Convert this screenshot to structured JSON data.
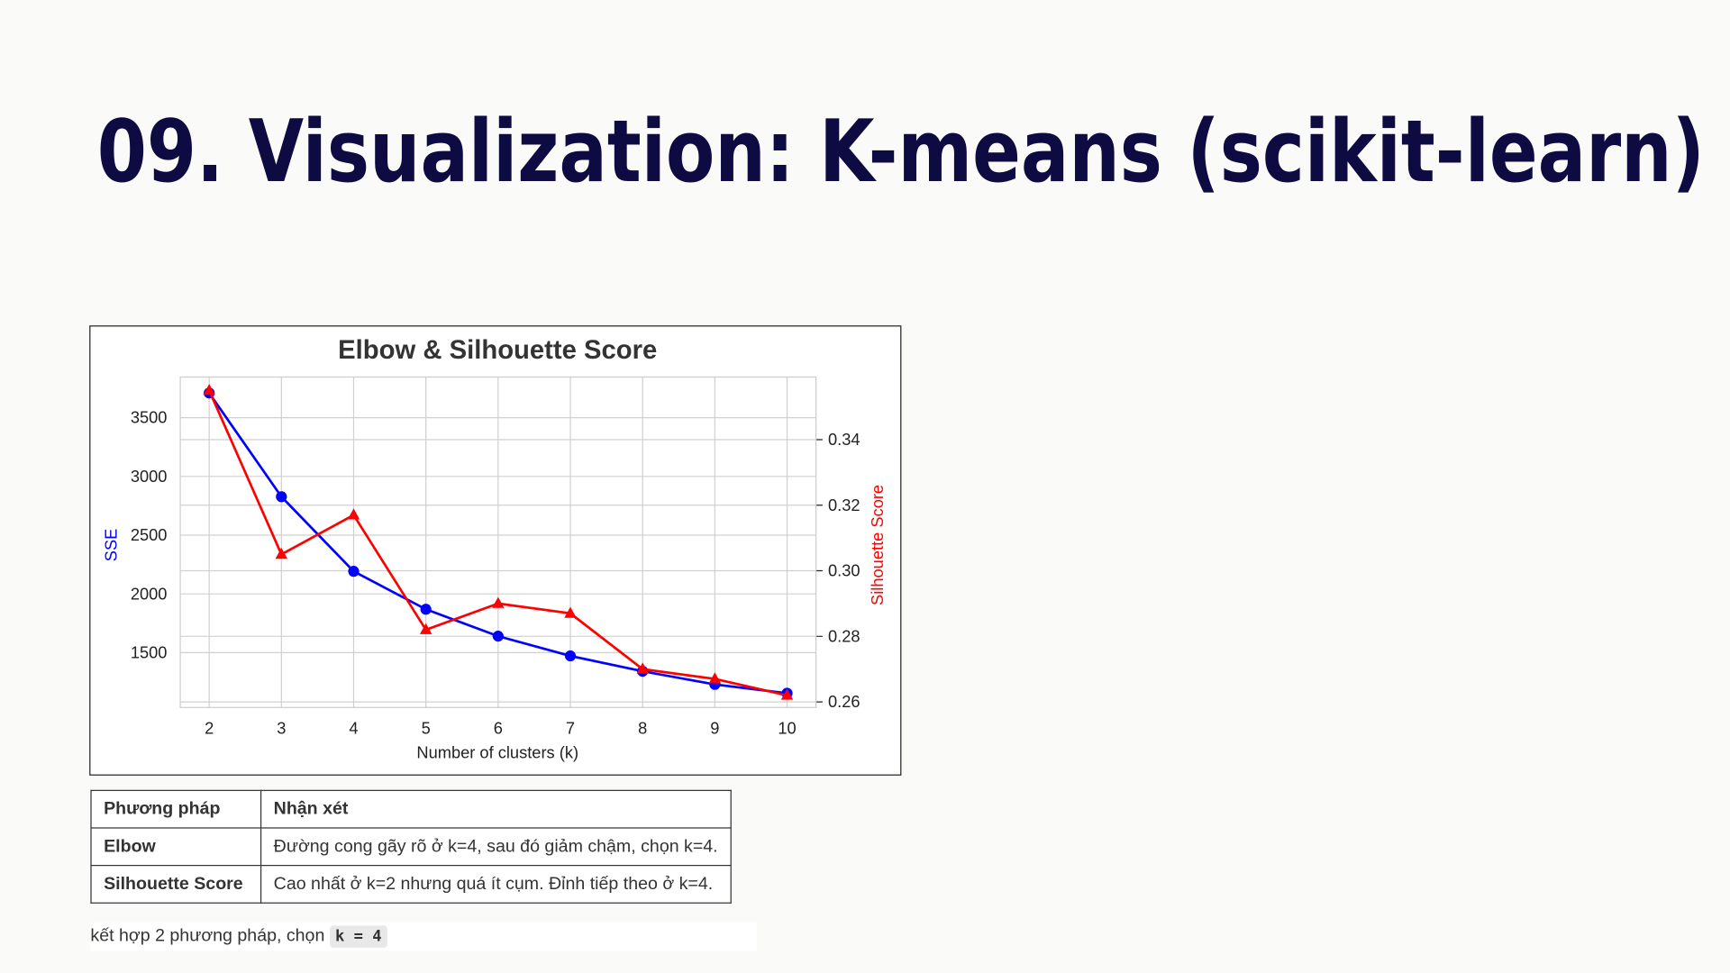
{
  "title": "09. Visualization: K-means (scikit-learn)",
  "chart_data": {
    "type": "line",
    "title": "Elbow & Silhouette Score",
    "x_label": "Number of clusters (k)",
    "y_label": "SSE",
    "y2_label": "Silhouette Score",
    "x": [
      2,
      3,
      4,
      5,
      6,
      7,
      8,
      9,
      10
    ],
    "xlim": [
      1.6,
      10.4
    ],
    "xticks": [
      2,
      3,
      4,
      5,
      6,
      7,
      8,
      9,
      10
    ],
    "ylim": [
      1033,
      3846
    ],
    "yticks": [
      1500,
      2000,
      2500,
      3000,
      3500
    ],
    "y2lim": [
      0.2583,
      0.3591
    ],
    "y2ticks": [
      0.26,
      0.28,
      {
        "value": 0.3,
        "label": "0.30"
      },
      0.32,
      0.34
    ],
    "grid": true,
    "series": [
      {
        "color": "#0000ff",
        "marker": "circle",
        "values": [
          3710,
          2827,
          2192,
          1869,
          1640,
          1472,
          1341,
          1229,
          1154
        ]
      },
      {
        "color": "#ff0000",
        "marker": "triangle",
        "axis": "y2",
        "values": [
          0.355,
          0.305,
          0.317,
          0.282,
          0.29,
          0.287,
          0.27,
          0.267,
          0.262
        ]
      }
    ]
  },
  "table": {
    "header": [
      "Phương pháp",
      "Nhận xét"
    ],
    "rows": [
      [
        "Elbow",
        "Đường cong gãy rõ ở k=4, sau đó giảm chậm, chọn k=4."
      ],
      [
        "Silhouette Score",
        "Cao nhất ở k=2 nhưng quá ít cụm. Đỉnh tiếp theo ở k=4."
      ]
    ]
  },
  "note": {
    "text": "kết hợp 2 phương pháp, chọn",
    "code": "k = 4"
  }
}
